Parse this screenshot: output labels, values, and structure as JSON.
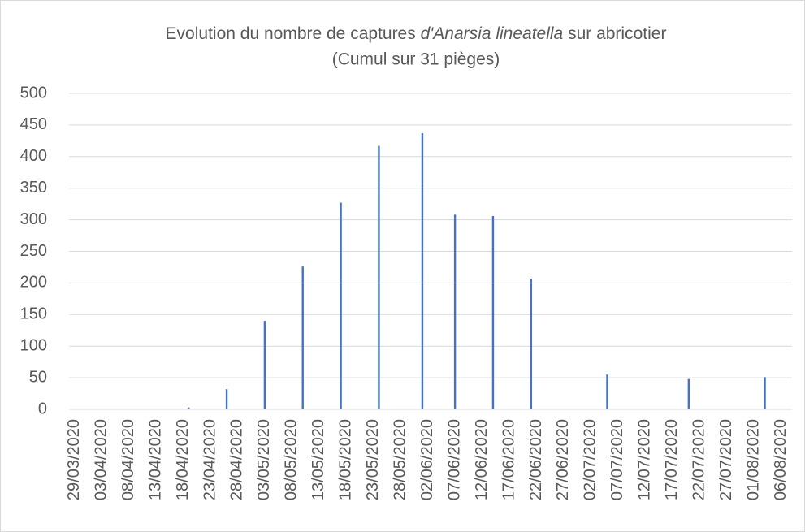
{
  "chart_data": {
    "type": "bar",
    "title": [
      "Evolution du nombre de captures",
      "d'Anarsia lineatella",
      "sur abricotier"
    ],
    "subtitle": "(Cumul sur 31 pièges)",
    "x": [
      "19/04/2020",
      "26/04/2020",
      "03/05/2020",
      "10/05/2020",
      "17/05/2020",
      "24/05/2020",
      "01/06/2020",
      "07/06/2020",
      "14/06/2020",
      "21/06/2020",
      "05/07/2020",
      "20/07/2020",
      "03/08/2020"
    ],
    "values": [
      3,
      32,
      140,
      226,
      327,
      417,
      437,
      308,
      306,
      207,
      55,
      48,
      51
    ],
    "color": "#4472c4",
    "xlim": [
      "28/03/2020",
      "08/08/2020"
    ],
    "xticks": [
      "29/03/2020",
      "03/04/2020",
      "08/04/2020",
      "13/04/2020",
      "18/04/2020",
      "23/04/2020",
      "28/04/2020",
      "03/05/2020",
      "08/05/2020",
      "13/05/2020",
      "18/05/2020",
      "23/05/2020",
      "28/05/2020",
      "02/06/2020",
      "07/06/2020",
      "12/06/2020",
      "17/06/2020",
      "22/06/2020",
      "27/06/2020",
      "02/07/2020",
      "07/07/2020",
      "12/07/2020",
      "17/07/2020",
      "22/07/2020",
      "27/07/2020",
      "01/08/2020",
      "06/08/2020"
    ],
    "ylim": [
      0,
      500
    ],
    "yticks": [
      0,
      50,
      100,
      150,
      200,
      250,
      300,
      350,
      400,
      450,
      500
    ],
    "grid": true
  }
}
